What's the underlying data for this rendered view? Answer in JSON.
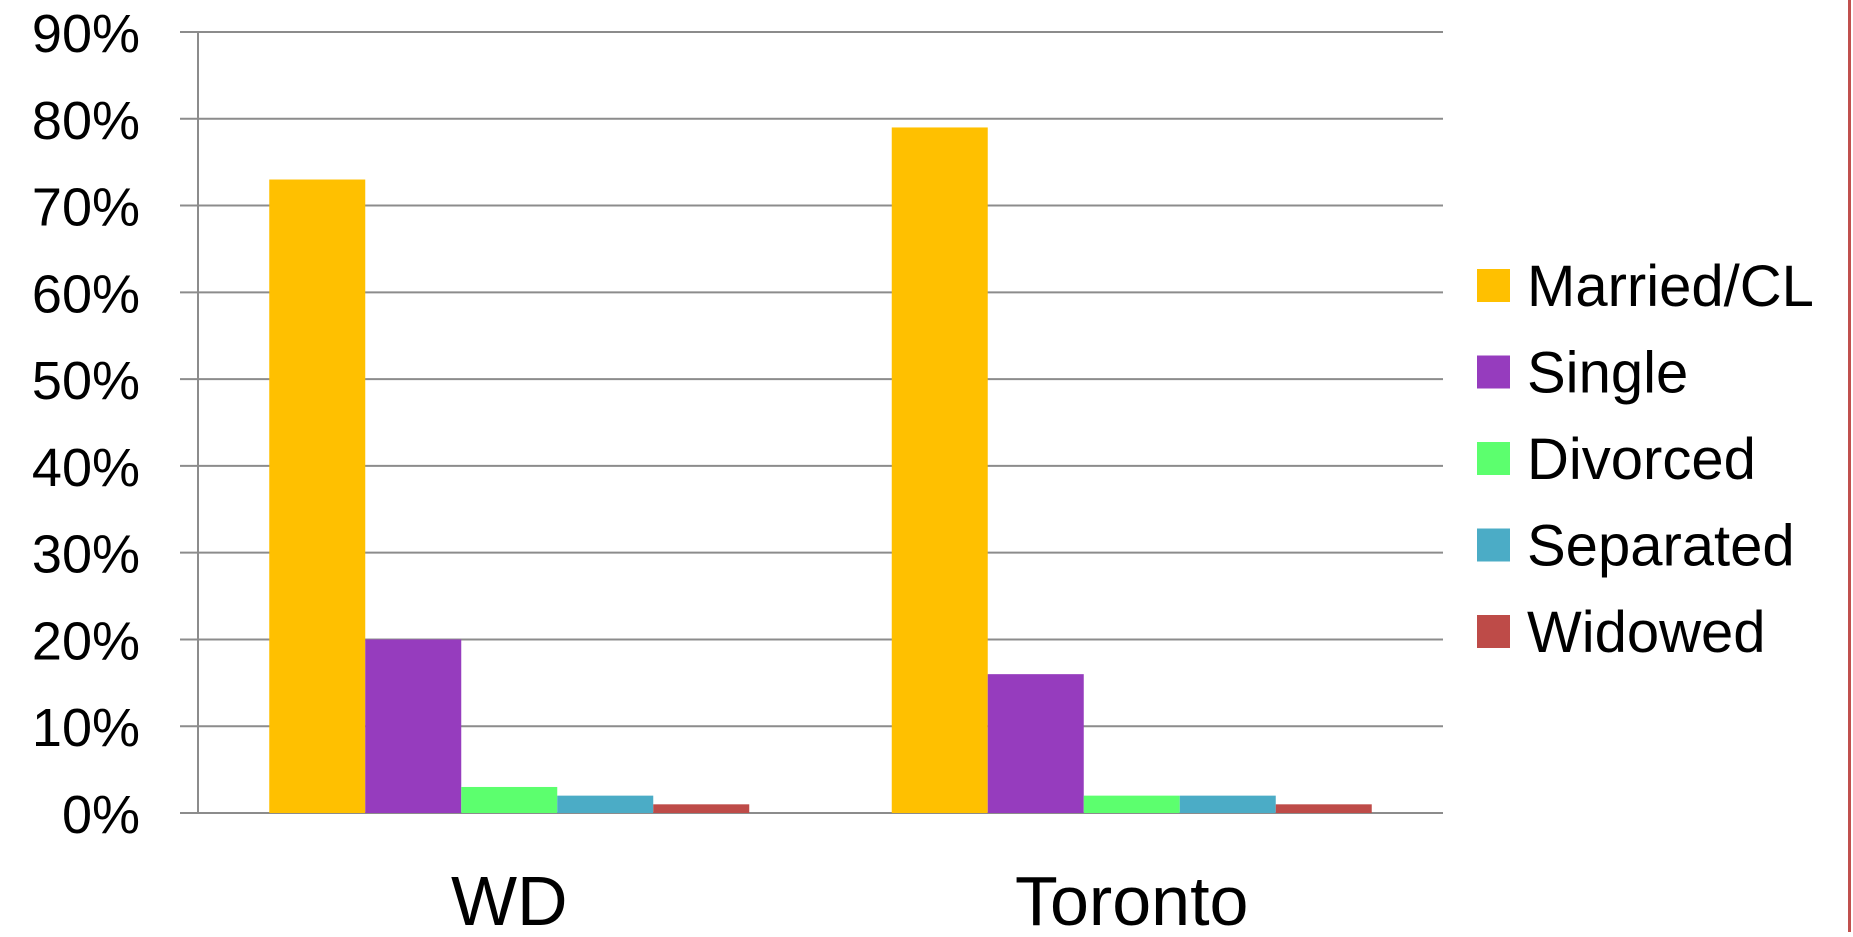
{
  "chart_data": {
    "type": "bar",
    "categories": [
      "WD",
      "Toronto"
    ],
    "series": [
      {
        "name": "Married/CL",
        "values": [
          73,
          79
        ],
        "color": "#FFC000"
      },
      {
        "name": "Single",
        "values": [
          20,
          16
        ],
        "color": "#963CBE"
      },
      {
        "name": "Divorced",
        "values": [
          3,
          2
        ],
        "color": "#5CFF6E"
      },
      {
        "name": "Separated",
        "values": [
          2,
          2
        ],
        "color": "#4BACC6"
      },
      {
        "name": "Widowed",
        "values": [
          1,
          1
        ],
        "color": "#BE4B48"
      }
    ],
    "y_ticks": [
      "0%",
      "10%",
      "20%",
      "30%",
      "40%",
      "50%",
      "60%",
      "70%",
      "80%",
      "90%"
    ],
    "ylim": [
      0,
      90
    ],
    "y_unit": "%",
    "grid": true,
    "legend_position": "right",
    "gridline_color": "#8c8c8c",
    "edge_line_color": "#c0504d"
  }
}
